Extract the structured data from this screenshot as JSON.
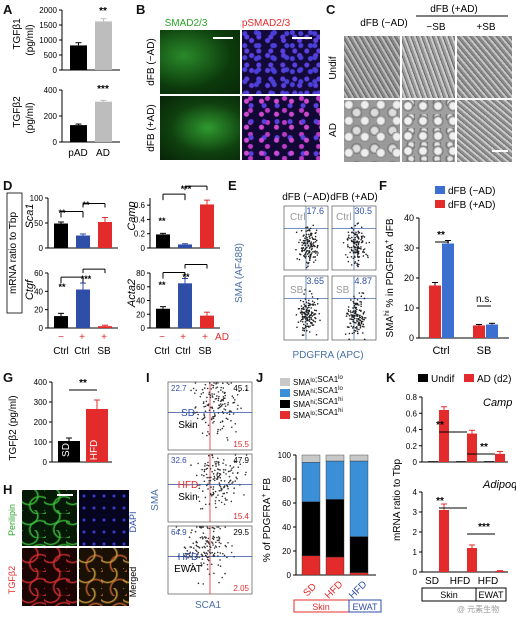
{
  "panels": [
    "A",
    "B",
    "C",
    "D",
    "E",
    "F",
    "G",
    "H",
    "I",
    "J",
    "K"
  ],
  "panel_a": {
    "top": {
      "ylabel_1": "TGFβ1",
      "ylabel_2": "(pg/ml)",
      "ticks": [
        "0",
        "500",
        "1000",
        "1500",
        "2000"
      ],
      "sig": "**"
    },
    "bottom": {
      "ylabel_1": "TGFβ2",
      "ylabel_2": "(pg/ml)",
      "ticks": [
        "0",
        "200",
        "400"
      ],
      "sig": "***"
    },
    "xcats": [
      "pAD",
      "AD"
    ]
  },
  "panel_b": {
    "col1": "SMAD2/3",
    "col2": "pSMAD2/3",
    "row1": "dFB (−AD)",
    "row2": "dFB (+AD)"
  },
  "panel_c": {
    "header_group": "dFB (+AD)",
    "col1": "dFB (−AD)",
    "col2": "−SB",
    "col3": "+SB",
    "row1": "Undif",
    "row2": "AD"
  },
  "panel_d": {
    "ylabel": "mRNA ratio to Tbp",
    "genes": [
      "Sca1",
      "Camp",
      "Ctgf",
      "Acta2"
    ],
    "sca1_ticks": [
      "0",
      "50",
      "100"
    ],
    "camp_ticks": [
      "0",
      "0.2",
      "0.4",
      "0.6"
    ],
    "ctgf_ticks": [
      "0",
      "20",
      "40",
      "60"
    ],
    "acta2_ticks": [
      "0",
      "20",
      "40",
      "60",
      "80"
    ],
    "signs": [
      "−",
      "+",
      "+"
    ],
    "xcats": [
      "Ctrl",
      "Ctrl",
      "SB"
    ],
    "ad_label": "AD",
    "sig": {
      "s1": "**",
      "s2": "**",
      "c1": "**",
      "c2": "***",
      "g1": "**",
      "g2": "***",
      "a1": "**",
      "a2": "**"
    }
  },
  "panel_e": {
    "col1": "dFB (−AD)",
    "col2": "dFB (+AD)",
    "row1": "Ctrl",
    "row2": "SB",
    "q": [
      "17.6",
      "30.5",
      "3.65",
      "4.87"
    ],
    "ylabel": "SMA (AF488)",
    "xlabel": "PDGFRA (APC)"
  },
  "panel_f": {
    "legend": [
      "dFB (−AD)",
      "dFB (+AD)"
    ],
    "ylabel_main": "SMA",
    "ylabel_rest": " % in PDGFRA",
    "ylabel_sup1": "hi",
    "ylabel_sup2": "+",
    "ylabel_end": " dFB",
    "ticks": [
      "0",
      "10",
      "20",
      "30",
      "40"
    ],
    "xcats": [
      "Ctrl",
      "SB"
    ],
    "sig1": "**",
    "sig2": "n.s."
  },
  "panel_g": {
    "ylabel": "TGFβ2 (pg/ml)",
    "ticks": [
      "0",
      "100",
      "200",
      "300",
      "400"
    ],
    "bars": [
      "SD",
      "HFD"
    ],
    "sig": "**"
  },
  "panel_h": {
    "c1": "Perilipin",
    "c2": "DAPI",
    "c3": "TGFβ2",
    "c4": "Merged"
  },
  "panel_i": {
    "rows": [
      {
        "tl": "22.7",
        "tr": "45.1",
        "br": "15.5",
        "l1": "SD",
        "l2": "Skin"
      },
      {
        "tl": "32.6",
        "tr": "47.9",
        "br": "15.4",
        "l1": "HFD",
        "l2": "Skin"
      },
      {
        "tl": "64.9",
        "tr": "29.5",
        "br": "2.05",
        "l1": "HFD",
        "l2": "EWAT"
      }
    ],
    "ylabel": "SMA",
    "xlabel": "SCA1"
  },
  "panel_j": {
    "legend": [
      {
        "a": "SMA",
        "b": "lo",
        "c": ";SCA1",
        "d": "lo",
        "color": "#c8c8c8"
      },
      {
        "a": "SMA",
        "b": "hi",
        "c": ";SCA1",
        "d": "lo",
        "color": "#3b8fd6"
      },
      {
        "a": "SMA",
        "b": "hi",
        "c": ";SCA1",
        "d": "hi",
        "color": "#000000"
      },
      {
        "a": "SMA",
        "b": "lo",
        "c": ";SCA1",
        "d": "hi",
        "color": "#e32b2b"
      }
    ],
    "ylabel": "% of PDGFRA",
    "ylabel_sup": "+",
    "ylabel_end": " FB",
    "ticks": [
      "0",
      "20",
      "40",
      "60",
      "80",
      "100"
    ],
    "xcats": [
      "SD",
      "HFD",
      "HFD"
    ],
    "groups": [
      "Skin",
      "EWAT"
    ]
  },
  "panel_k": {
    "legend": [
      "Undif",
      "AD (d2)"
    ],
    "ylabel": "mRNA ratio to Tbp",
    "gene1": "Camp",
    "gene2": "Adipoq",
    "camp_ticks": [
      "0",
      "0.2",
      "0.4",
      "0.6",
      "0.8"
    ],
    "adipoq_ticks": [
      "0",
      "1",
      "2",
      "3",
      "4"
    ],
    "xcats": [
      "SD",
      "HFD",
      "HFD"
    ],
    "groups": [
      "Skin",
      "EWAT"
    ],
    "sig": {
      "k1": "**",
      "k2": "**",
      "k3": "**",
      "k4": "***"
    },
    "watermark": "@ 元素生物"
  },
  "chart_data": [
    {
      "id": "A-top",
      "type": "bar",
      "categories": [
        "pAD",
        "AD"
      ],
      "values": [
        820,
        1620
      ],
      "errors": [
        90,
        90
      ],
      "ylabel": "TGFβ1 (pg/ml)",
      "ylim": [
        0,
        2000
      ],
      "colors": [
        "#000000",
        "#bdbdbd"
      ]
    },
    {
      "id": "A-bottom",
      "type": "bar",
      "categories": [
        "pAD",
        "AD"
      ],
      "values": [
        130,
        310
      ],
      "errors": [
        8,
        10
      ],
      "ylabel": "TGFβ2 (pg/ml)",
      "ylim": [
        0,
        400
      ],
      "colors": [
        "#000000",
        "#bdbdbd"
      ]
    },
    {
      "id": "D-Sca1",
      "type": "bar",
      "categories": [
        "Ctrl −",
        "Ctrl +",
        "SB +"
      ],
      "values": [
        49,
        25,
        52
      ],
      "errors": [
        3,
        3,
        9
      ],
      "ylim": [
        0,
        100
      ],
      "colors": [
        "#000000",
        "#2f4ea8",
        "#e32b2b"
      ]
    },
    {
      "id": "D-Camp",
      "type": "bar",
      "categories": [
        "Ctrl −",
        "Ctrl +",
        "SB +"
      ],
      "values": [
        0.19,
        0.05,
        0.61
      ],
      "errors": [
        0.015,
        0.01,
        0.06
      ],
      "ylim": [
        0,
        0.7
      ],
      "colors": [
        "#000000",
        "#2f4ea8",
        "#e32b2b"
      ]
    },
    {
      "id": "D-Ctgf",
      "type": "bar",
      "categories": [
        "Ctrl −",
        "Ctrl +",
        "SB +"
      ],
      "values": [
        13,
        42,
        2
      ],
      "errors": [
        3,
        7,
        1
      ],
      "ylim": [
        0,
        60
      ],
      "colors": [
        "#000000",
        "#2f4ea8",
        "#e32b2b"
      ]
    },
    {
      "id": "D-Acta2",
      "type": "bar",
      "categories": [
        "Ctrl −",
        "Ctrl +",
        "SB +"
      ],
      "values": [
        28,
        65,
        18
      ],
      "errors": [
        3,
        7,
        5
      ],
      "ylim": [
        0,
        80
      ],
      "colors": [
        "#000000",
        "#2f4ea8",
        "#e32b2b"
      ]
    },
    {
      "id": "F",
      "type": "bar",
      "categories": [
        "Ctrl",
        "SB"
      ],
      "series": [
        {
          "name": "dFB (−AD)",
          "values": [
            31.5,
            4.5
          ],
          "errors": [
            1,
            0.4
          ]
        },
        {
          "name": "dFB (+AD)",
          "values": [
            17.5,
            4.2
          ],
          "errors": [
            1,
            0.3
          ]
        }
      ],
      "ylim": [
        0,
        40
      ]
    },
    {
      "id": "G",
      "type": "bar",
      "categories": [
        "SD",
        "HFD"
      ],
      "values": [
        105,
        265
      ],
      "errors": [
        15,
        45
      ],
      "ylabel": "TGFβ2 (pg/ml)",
      "ylim": [
        0,
        400
      ],
      "colors": [
        "#000000",
        "#e32b2b"
      ]
    },
    {
      "id": "J",
      "type": "bar",
      "categories": [
        "SD Skin",
        "HFD Skin",
        "HFD EWAT"
      ],
      "series": [
        {
          "name": "SMAlo;SCA1hi",
          "values": [
            16,
            15,
            2
          ]
        },
        {
          "name": "SMAhi;SCA1hi",
          "values": [
            45,
            48,
            30
          ]
        },
        {
          "name": "SMAhi;SCA1lo",
          "values": [
            33,
            32,
            63
          ]
        },
        {
          "name": "SMAlo;SCA1lo",
          "values": [
            6,
            5,
            5
          ]
        }
      ],
      "ylim": [
        0,
        100
      ]
    },
    {
      "id": "K-Camp",
      "type": "bar",
      "categories": [
        "SD",
        "HFD",
        "HFD"
      ],
      "series": [
        {
          "name": "Undif",
          "values": [
            0.01,
            0.01,
            0.01
          ]
        },
        {
          "name": "AD (d2)",
          "values": [
            0.64,
            0.35,
            0.1
          ]
        }
      ],
      "errors": [
        [
          0,
          0,
          0
        ],
        [
          0.04,
          0.04,
          0.03
        ]
      ],
      "ylim": [
        0,
        0.8
      ]
    },
    {
      "id": "K-Adipoq",
      "type": "bar",
      "categories": [
        "SD",
        "HFD",
        "HFD"
      ],
      "series": [
        {
          "name": "Undif",
          "values": [
            0.02,
            0.02,
            0.02
          ]
        },
        {
          "name": "AD (d2)",
          "values": [
            3.1,
            1.2,
            0.05
          ]
        }
      ],
      "errors": [
        [
          0,
          0,
          0
        ],
        [
          0.3,
          0.15,
          0.02
        ]
      ],
      "ylim": [
        0,
        4
      ]
    }
  ]
}
